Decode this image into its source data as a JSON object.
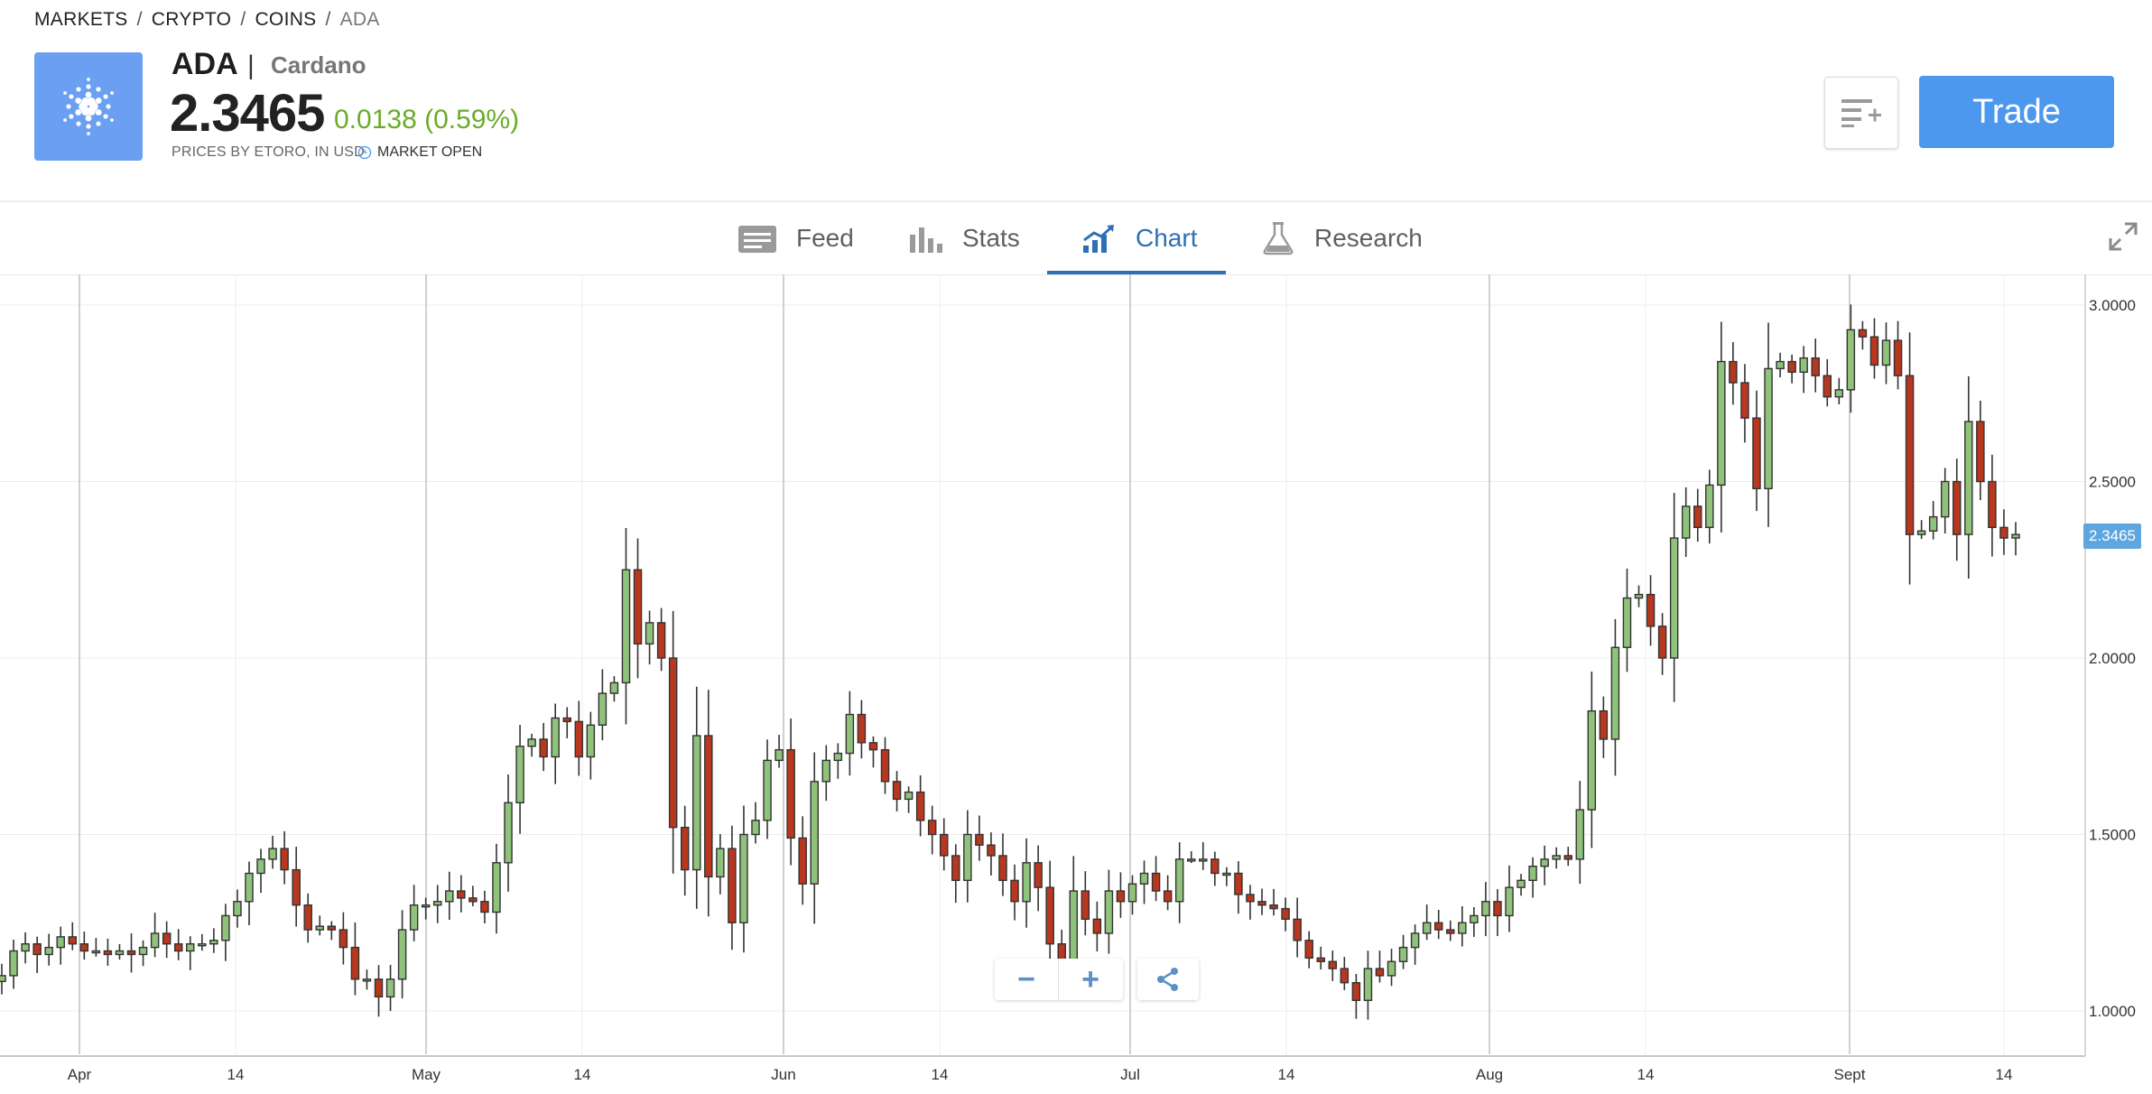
{
  "breadcrumb": {
    "items": [
      "MARKETS",
      "CRYPTO",
      "COINS",
      "ADA"
    ],
    "separator": "/"
  },
  "instrument": {
    "symbol": "ADA",
    "pipe": "|",
    "name": "Cardano",
    "price": "2.3465",
    "change": "0.0138 (0.59%)",
    "source_note": "PRICES BY ETORO, IN USD",
    "market_status": "MARKET OPEN",
    "logo_icon": "cardano-logo-icon",
    "logo_color": "#6a9ff2"
  },
  "actions": {
    "watchlist_icon": "add-to-watchlist-icon",
    "trade_label": "Trade",
    "trade_color": "#4c98ee"
  },
  "tabs": [
    {
      "label": "Feed",
      "icon": "feed-icon"
    },
    {
      "label": "Stats",
      "icon": "stats-icon"
    },
    {
      "label": "Chart",
      "icon": "chart-icon",
      "active": true
    },
    {
      "label": "Research",
      "icon": "flask-icon"
    }
  ],
  "chart_controls": {
    "zoom_out": "−",
    "zoom_in": "+",
    "share_icon": "share-icon",
    "fullscreen_icon": "expand-icon"
  },
  "chart_data": {
    "type": "candlestick",
    "x_ticks": [
      "Apr",
      "14",
      "May",
      "14",
      "Jun",
      "14",
      "Jul",
      "14",
      "Aug",
      "14",
      "Sept",
      "14"
    ],
    "y_ticks": [
      "3.0000",
      "2.5000",
      "2.0000",
      "1.5000",
      "1.0000"
    ],
    "ylim": [
      0.87,
      3.06
    ],
    "last_price_label": "2.3465",
    "colors": {
      "up": "#8fc27a",
      "down": "#b8371f"
    },
    "x_month_starts": [
      "Apr",
      "May",
      "Jun",
      "Jul",
      "Aug",
      "Sept"
    ],
    "close_series": [
      1.1,
      1.17,
      1.19,
      1.16,
      1.18,
      1.21,
      1.19,
      1.17,
      1.17,
      1.16,
      1.17,
      1.16,
      1.18,
      1.22,
      1.19,
      1.17,
      1.19,
      1.19,
      1.2,
      1.27,
      1.31,
      1.39,
      1.43,
      1.46,
      1.4,
      1.3,
      1.23,
      1.24,
      1.23,
      1.18,
      1.09,
      1.09,
      1.04,
      1.09,
      1.23,
      1.3,
      1.3,
      1.31,
      1.34,
      1.32,
      1.31,
      1.28,
      1.42,
      1.59,
      1.75,
      1.77,
      1.72,
      1.83,
      1.82,
      1.72,
      1.81,
      1.9,
      1.93,
      2.25,
      2.04,
      2.1,
      2.0,
      1.52,
      1.4,
      1.78,
      1.38,
      1.46,
      1.25,
      1.5,
      1.54,
      1.71,
      1.74,
      1.49,
      1.36,
      1.65,
      1.71,
      1.73,
      1.84,
      1.76,
      1.74,
      1.65,
      1.6,
      1.62,
      1.54,
      1.5,
      1.44,
      1.37,
      1.5,
      1.47,
      1.44,
      1.37,
      1.31,
      1.42,
      1.35,
      1.19,
      1.14,
      1.34,
      1.26,
      1.22,
      1.34,
      1.31,
      1.36,
      1.39,
      1.34,
      1.31,
      1.43,
      1.43,
      1.43,
      1.39,
      1.39,
      1.33,
      1.31,
      1.3,
      1.29,
      1.26,
      1.2,
      1.15,
      1.14,
      1.12,
      1.08,
      1.03,
      1.12,
      1.1,
      1.14,
      1.18,
      1.22,
      1.25,
      1.23,
      1.22,
      1.25,
      1.27,
      1.31,
      1.27,
      1.35,
      1.37,
      1.41,
      1.43,
      1.44,
      1.43,
      1.57,
      1.85,
      1.77,
      2.03,
      2.17,
      2.18,
      2.09,
      2.0,
      2.34,
      2.43,
      2.37,
      2.49,
      2.84,
      2.78,
      2.68,
      2.48,
      2.82,
      2.84,
      2.81,
      2.85,
      2.8,
      2.74,
      2.76,
      2.93,
      2.91,
      2.83,
      2.9,
      2.8,
      2.35,
      2.36,
      2.4,
      2.5,
      2.35,
      2.67,
      2.5,
      2.37,
      2.34,
      2.35
    ]
  }
}
